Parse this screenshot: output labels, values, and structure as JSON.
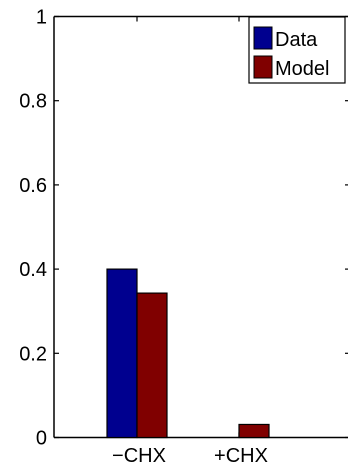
{
  "chart_data": {
    "type": "bar",
    "categories": [
      "−CHX",
      "+CHX"
    ],
    "series": [
      {
        "name": "Data",
        "values": [
          0.4,
          0.0
        ],
        "color": "#00008f"
      },
      {
        "name": "Model",
        "values": [
          0.343,
          0.031
        ],
        "color": "#800000"
      }
    ],
    "title": "",
    "xlabel": "",
    "ylabel": "",
    "ylim": [
      0,
      1
    ],
    "yticks": [
      0,
      0.2,
      0.4,
      0.6,
      0.8,
      1
    ],
    "ytick_labels": [
      "0",
      "0.2",
      "0.4",
      "0.6",
      "0.8",
      "1"
    ],
    "grid": false,
    "legend_position": "top-right"
  }
}
